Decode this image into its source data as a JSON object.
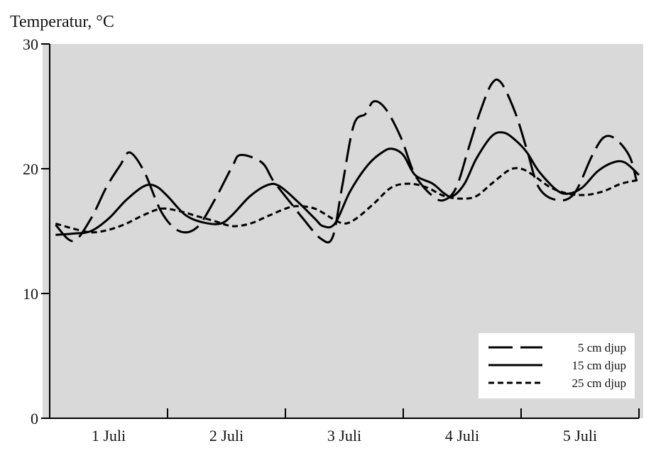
{
  "chart_data": {
    "type": "line",
    "title": "",
    "ylabel": "Temperatur, °C",
    "xlabel": "",
    "ylim": [
      0,
      30
    ],
    "yticks": [
      0,
      10,
      20,
      30
    ],
    "xlim": [
      0,
      5
    ],
    "day_labels": [
      "1 Juli",
      "2 Juli",
      "3 Juli",
      "4 Juli",
      "5 Juli"
    ],
    "grid": false,
    "legend_position": "bottom-right",
    "background_color": "#d9d9d9",
    "line_color": "#000000",
    "series": [
      {
        "name": "5 cm djup",
        "style": "dashed",
        "points": [
          [
            0.05,
            15.5
          ],
          [
            0.2,
            14.2
          ],
          [
            0.35,
            16.0
          ],
          [
            0.48,
            18.5
          ],
          [
            0.6,
            20.3
          ],
          [
            0.68,
            21.3
          ],
          [
            0.8,
            19.8
          ],
          [
            0.95,
            16.5
          ],
          [
            1.1,
            15.0
          ],
          [
            1.25,
            15.3
          ],
          [
            1.4,
            17.5
          ],
          [
            1.55,
            20.2
          ],
          [
            1.62,
            21.1
          ],
          [
            1.8,
            20.5
          ],
          [
            1.9,
            19.0
          ],
          [
            2.05,
            17.2
          ],
          [
            2.15,
            16.0
          ],
          [
            2.3,
            14.4
          ],
          [
            2.4,
            14.5
          ],
          [
            2.48,
            18.5
          ],
          [
            2.58,
            23.5
          ],
          [
            2.68,
            24.4
          ],
          [
            2.75,
            25.4
          ],
          [
            2.85,
            24.8
          ],
          [
            2.98,
            22.5
          ],
          [
            3.1,
            19.5
          ],
          [
            3.25,
            17.8
          ],
          [
            3.35,
            17.5
          ],
          [
            3.45,
            18.5
          ],
          [
            3.55,
            21.5
          ],
          [
            3.65,
            24.5
          ],
          [
            3.75,
            26.8
          ],
          [
            3.83,
            26.9
          ],
          [
            3.95,
            24.5
          ],
          [
            4.05,
            21.5
          ],
          [
            4.15,
            18.5
          ],
          [
            4.3,
            17.5
          ],
          [
            4.45,
            18.0
          ],
          [
            4.6,
            21.0
          ],
          [
            4.7,
            22.5
          ],
          [
            4.8,
            22.4
          ],
          [
            4.92,
            21.0
          ],
          [
            4.98,
            19.0
          ]
        ]
      },
      {
        "name": "15 cm djup",
        "style": "solid",
        "points": [
          [
            0.05,
            14.7
          ],
          [
            0.2,
            14.8
          ],
          [
            0.35,
            15.0
          ],
          [
            0.5,
            16.0
          ],
          [
            0.65,
            17.5
          ],
          [
            0.8,
            18.6
          ],
          [
            0.9,
            18.6
          ],
          [
            1.0,
            17.8
          ],
          [
            1.15,
            16.3
          ],
          [
            1.3,
            15.7
          ],
          [
            1.45,
            15.6
          ],
          [
            1.55,
            16.3
          ],
          [
            1.7,
            17.8
          ],
          [
            1.85,
            18.7
          ],
          [
            1.95,
            18.6
          ],
          [
            2.1,
            17.4
          ],
          [
            2.25,
            16.0
          ],
          [
            2.32,
            15.4
          ],
          [
            2.42,
            15.6
          ],
          [
            2.55,
            18.2
          ],
          [
            2.7,
            20.3
          ],
          [
            2.82,
            21.3
          ],
          [
            2.9,
            21.6
          ],
          [
            3.0,
            21.1
          ],
          [
            3.1,
            19.5
          ],
          [
            3.25,
            18.8
          ],
          [
            3.35,
            18.0
          ],
          [
            3.42,
            17.8
          ],
          [
            3.52,
            18.8
          ],
          [
            3.62,
            20.8
          ],
          [
            3.75,
            22.6
          ],
          [
            3.85,
            22.9
          ],
          [
            3.95,
            22.3
          ],
          [
            4.05,
            21.3
          ],
          [
            4.15,
            19.8
          ],
          [
            4.3,
            18.3
          ],
          [
            4.4,
            18.0
          ],
          [
            4.52,
            18.5
          ],
          [
            4.65,
            19.8
          ],
          [
            4.78,
            20.5
          ],
          [
            4.88,
            20.5
          ],
          [
            5.0,
            19.5
          ]
        ]
      },
      {
        "name": "25 cm djup",
        "style": "dotted",
        "points": [
          [
            0.05,
            15.6
          ],
          [
            0.2,
            15.2
          ],
          [
            0.35,
            14.9
          ],
          [
            0.5,
            15.1
          ],
          [
            0.65,
            15.6
          ],
          [
            0.8,
            16.3
          ],
          [
            0.95,
            16.8
          ],
          [
            1.1,
            16.6
          ],
          [
            1.25,
            16.2
          ],
          [
            1.4,
            15.8
          ],
          [
            1.55,
            15.4
          ],
          [
            1.7,
            15.6
          ],
          [
            1.85,
            16.2
          ],
          [
            2.0,
            16.8
          ],
          [
            2.1,
            17.0
          ],
          [
            2.25,
            16.8
          ],
          [
            2.4,
            16.0
          ],
          [
            2.5,
            15.6
          ],
          [
            2.6,
            16.0
          ],
          [
            2.75,
            17.2
          ],
          [
            2.9,
            18.5
          ],
          [
            3.05,
            18.8
          ],
          [
            3.2,
            18.5
          ],
          [
            3.35,
            17.8
          ],
          [
            3.5,
            17.6
          ],
          [
            3.62,
            17.8
          ],
          [
            3.75,
            18.8
          ],
          [
            3.9,
            19.9
          ],
          [
            4.0,
            20.0
          ],
          [
            4.1,
            19.5
          ],
          [
            4.25,
            18.5
          ],
          [
            4.4,
            18.0
          ],
          [
            4.55,
            17.9
          ],
          [
            4.7,
            18.2
          ],
          [
            4.85,
            18.8
          ],
          [
            5.0,
            19.1
          ]
        ]
      }
    ]
  }
}
